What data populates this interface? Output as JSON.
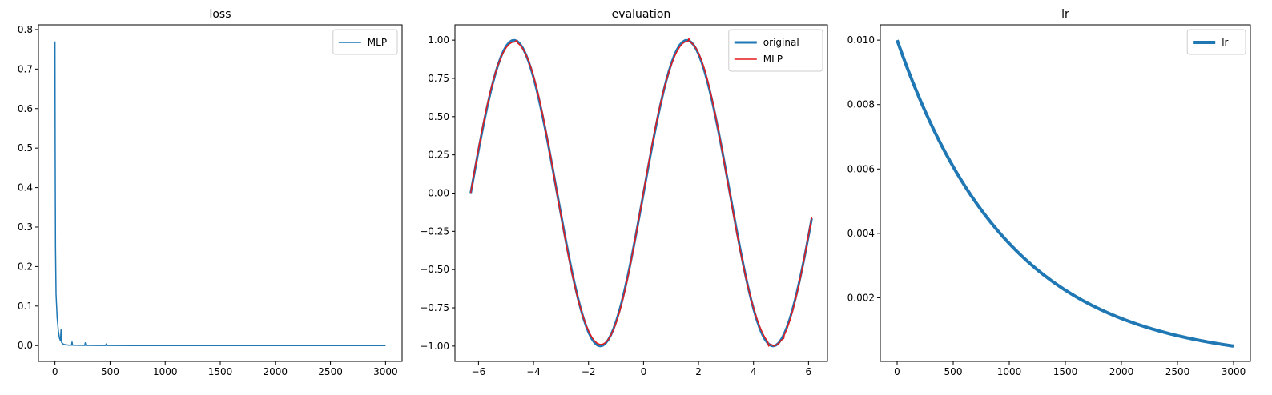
{
  "chart_data": [
    {
      "type": "line",
      "title": "loss",
      "xlabel": "",
      "ylabel": "",
      "xlim": [
        -150,
        3150
      ],
      "ylim": [
        -0.04,
        0.812
      ],
      "xticks": [
        0,
        500,
        1000,
        1500,
        2000,
        2500,
        3000
      ],
      "xtick_labels": [
        "0",
        "500",
        "1000",
        "1500",
        "2000",
        "2500",
        "3000"
      ],
      "yticks": [
        0.0,
        0.1,
        0.2,
        0.3,
        0.4,
        0.5,
        0.6,
        0.7,
        0.8
      ],
      "ytick_labels": [
        "0.0",
        "0.1",
        "0.2",
        "0.3",
        "0.4",
        "0.5",
        "0.6",
        "0.7",
        "0.8"
      ],
      "grid": false,
      "legend_position": "top-right",
      "series": [
        {
          "name": "MLP",
          "color": "#1f77b4",
          "linewidth": 1.5,
          "x": [
            0,
            2,
            5,
            10,
            15,
            20,
            30,
            40,
            50,
            55,
            60,
            70,
            80,
            100,
            130,
            150,
            155,
            160,
            200,
            270,
            275,
            280,
            300,
            400,
            460,
            465,
            470,
            500,
            700,
            1000,
            1500,
            2000,
            2500,
            3000
          ],
          "y": [
            0.77,
            0.5,
            0.25,
            0.13,
            0.1,
            0.07,
            0.04,
            0.02,
            0.012,
            0.04,
            0.008,
            0.005,
            0.003,
            0.002,
            0.001,
            0.001,
            0.009,
            0.001,
            0.0008,
            0.0006,
            0.007,
            0.0005,
            0.0004,
            0.0003,
            0.0003,
            0.004,
            0.0003,
            0.0002,
            0.0001,
            0.0001,
            0.0001,
            0.0001,
            0.0001,
            0.0001
          ]
        }
      ]
    },
    {
      "type": "line",
      "title": "evaluation",
      "xlabel": "",
      "ylabel": "",
      "xlim": [
        -6.856,
        6.688
      ],
      "ylim": [
        -1.1,
        1.1
      ],
      "xticks": [
        -6,
        -4,
        -2,
        0,
        2,
        4,
        6
      ],
      "xtick_labels": [
        "−6",
        "−4",
        "−2",
        "0",
        "2",
        "4",
        "6"
      ],
      "yticks": [
        -1.0,
        -0.75,
        -0.5,
        -0.25,
        0.0,
        0.25,
        0.5,
        0.75,
        1.0
      ],
      "ytick_labels": [
        "−1.00",
        "−0.75",
        "−0.50",
        "−0.25",
        "0.00",
        "0.25",
        "0.50",
        "0.75",
        "1.00"
      ],
      "grid": false,
      "legend_position": "top-right",
      "series": [
        {
          "name": "original",
          "color": "#1f77b4",
          "linewidth": 3,
          "function": "sin",
          "x_start": -6.283,
          "x_end": 6.16,
          "step": 0.1
        },
        {
          "name": "MLP",
          "color": "#e41a1c",
          "linewidth": 1.5,
          "function": "sin_approx",
          "x_start": -6.283,
          "x_end": 6.16,
          "step": 0.1,
          "deviations": [
            {
              "x": -4.6,
              "y": 1.0
            },
            {
              "x": 1.65,
              "y": 1.01
            },
            {
              "x": 4.55,
              "y": -1.0
            },
            {
              "x": 4.75,
              "y": -1.0
            },
            {
              "x": 5.1,
              "y": -0.95
            }
          ]
        }
      ]
    },
    {
      "type": "line",
      "title": "lr",
      "xlabel": "",
      "ylabel": "",
      "xlim": [
        -150,
        3150
      ],
      "ylim": [
        2.5e-05,
        0.010475
      ],
      "xticks": [
        0,
        500,
        1000,
        1500,
        2000,
        2500,
        3000
      ],
      "xtick_labels": [
        "0",
        "500",
        "1000",
        "1500",
        "2000",
        "2500",
        "3000"
      ],
      "yticks": [
        0.002,
        0.004,
        0.006,
        0.008,
        0.01
      ],
      "ytick_labels": [
        "0.002",
        "0.004",
        "0.006",
        "0.008",
        "0.010"
      ],
      "grid": false,
      "legend_position": "top-right",
      "series": [
        {
          "name": "lr",
          "color": "#1f77b4",
          "linewidth": 4,
          "function": "exp_decay",
          "start_value": 0.01,
          "end_value": 0.0005,
          "x_start": 0,
          "x_end": 3000
        }
      ]
    }
  ]
}
